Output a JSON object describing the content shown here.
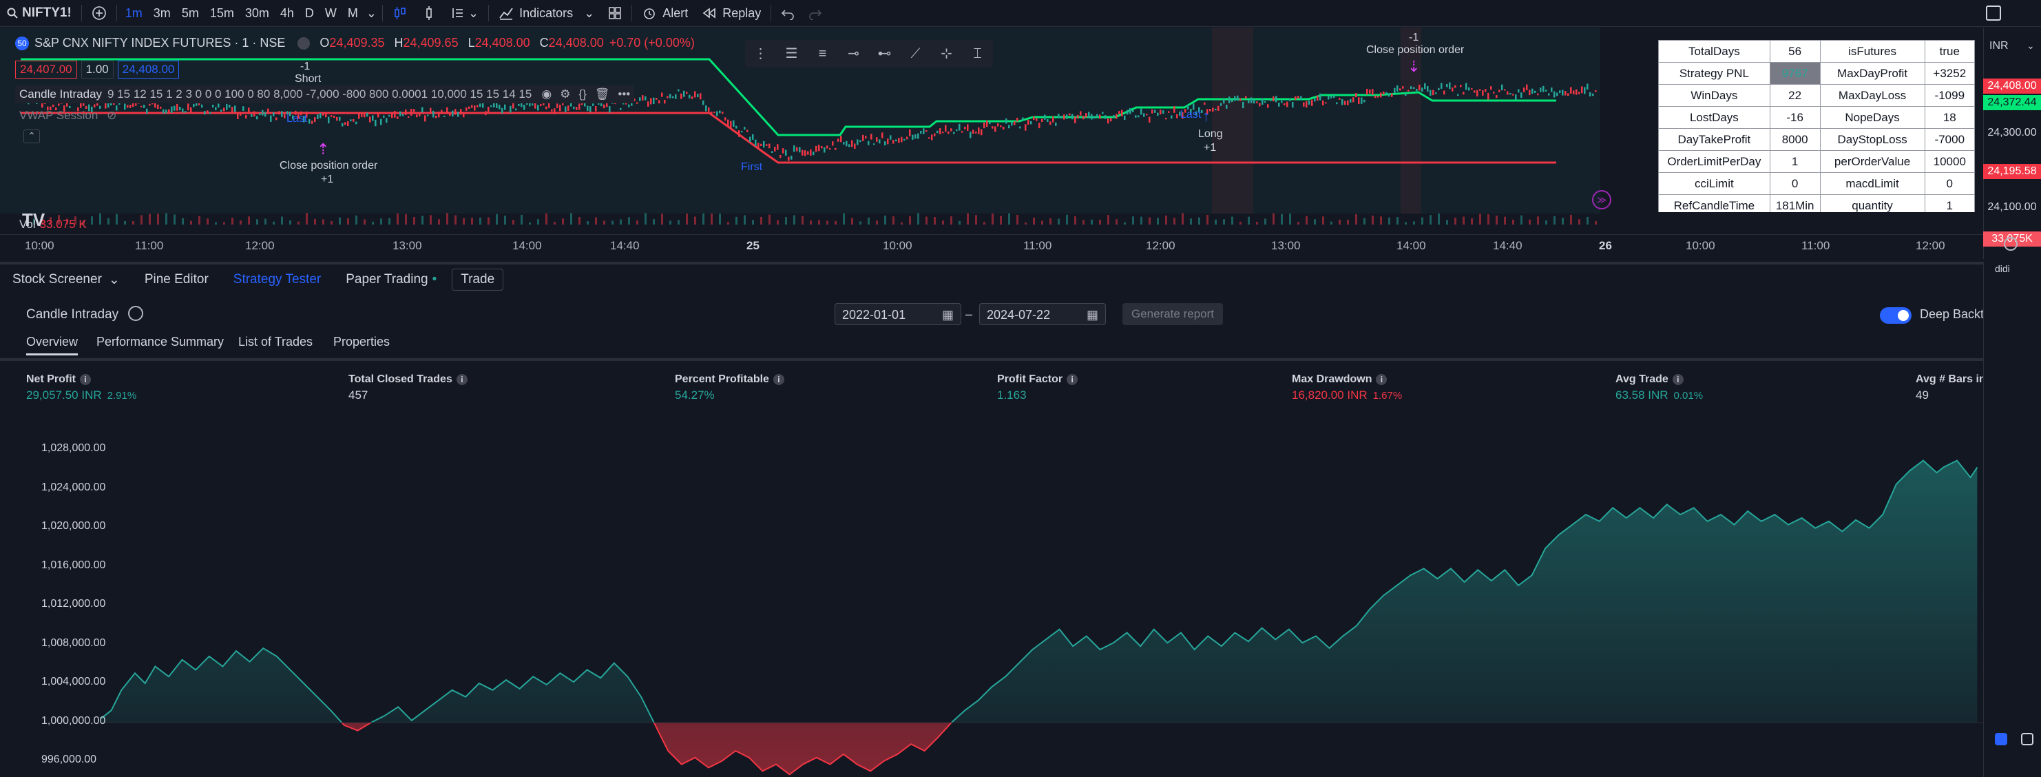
{
  "toolbar": {
    "symbol": "NIFTY1!",
    "intervals": [
      "1m",
      "3m",
      "5m",
      "15m",
      "30m",
      "4h",
      "D",
      "W",
      "M"
    ],
    "active_interval": "1m",
    "indicators_label": "Indicators",
    "alert_label": "Alert",
    "replay_label": "Replay"
  },
  "chart": {
    "exchange_badge": "50",
    "title": "S&P CNX NIFTY INDEX FUTURES · 1 · NSE",
    "ohlc": {
      "o_label": "O",
      "o": "24,409.35",
      "h_label": "H",
      "h": "24,409.65",
      "l_label": "L",
      "l": "24,408.00",
      "c_label": "C",
      "c": "24,408.00",
      "change": "+0.70 (+0.00%)"
    },
    "bid": "24,407.00",
    "spread": "1.00",
    "ask": "24,408.00",
    "indicator_name": "Candle Intraday",
    "indicator_params": "9 15 12 15 1 2 3 0 0 0 100 0 80 8,000 -7,000 -800 800 0.0001 10,000 15 15 14 15",
    "vwap_label": "VWAP Session",
    "annotations": {
      "short_top": "-1",
      "short": "Short",
      "last1": "Last",
      "close1": "Close position order",
      "close1_qty": "+1",
      "first": "First",
      "last2": "Last",
      "long": "Long",
      "long_qty": "+1",
      "close2_qty": "-1",
      "close2": "Close position order"
    },
    "volume_label": "Vol",
    "volume_value": "33.075 K",
    "time_labels": [
      "10:00",
      "11:00",
      "12:00",
      "13:00",
      "14:00",
      "14:40",
      "25",
      "10:00",
      "11:00",
      "12:00",
      "13:00",
      "14:00",
      "14:40",
      "26",
      "10:00",
      "11:00",
      "12:00"
    ]
  },
  "price_scale": {
    "currency": "INR",
    "labels": [
      {
        "text": "24,408.00",
        "style": "red"
      },
      {
        "text": "24,372.44",
        "style": "green"
      },
      {
        "text": "24,300.00",
        "style": "grey"
      },
      {
        "text": "24,195.58",
        "style": "red"
      },
      {
        "text": "24,100.00",
        "style": "grey"
      },
      {
        "text": "33.075K",
        "style": "pink"
      }
    ]
  },
  "stats_table": [
    [
      "TotalDays",
      "56",
      "isFutures",
      "true"
    ],
    [
      "Strategy PNL",
      "9767",
      "MaxDayProfit",
      "+3252"
    ],
    [
      "WinDays",
      "22",
      "MaxDayLoss",
      "-1099"
    ],
    [
      "LostDays",
      "-16",
      "NopeDays",
      "18"
    ],
    [
      "DayTakeProfit",
      "8000",
      "DayStopLoss",
      "-7000"
    ],
    [
      "OrderLimitPerDay",
      "1",
      "perOrderValue",
      "10000"
    ],
    [
      "cciLimit",
      "0",
      "macdLimit",
      "0"
    ],
    [
      "RefCandleTime",
      "181Min",
      "quantity",
      "1"
    ]
  ],
  "panel": {
    "tabs": [
      "Stock Screener",
      "Pine Editor",
      "Strategy Tester",
      "Paper Trading",
      "Trade"
    ],
    "active_tab": "Strategy Tester",
    "strategy_name": "Candle Intraday",
    "date_from": "2022-01-01",
    "date_sep": "–",
    "date_to": "2024-07-22",
    "generate_label": "Generate report",
    "deep_label": "Deep Backtesting",
    "subtabs": [
      "Overview",
      "Performance Summary",
      "List of Trades",
      "Properties"
    ],
    "metrics": [
      {
        "label": "Net Profit",
        "value": "29,057.50 INR",
        "pct": "2.91%",
        "color": "green"
      },
      {
        "label": "Total Closed Trades",
        "value": "457",
        "pct": "",
        "color": "white"
      },
      {
        "label": "Percent Profitable",
        "value": "54.27%",
        "pct": "",
        "color": "green"
      },
      {
        "label": "Profit Factor",
        "value": "1.163",
        "pct": "",
        "color": "green"
      },
      {
        "label": "Max Drawdown",
        "value": "16,820.00 INR",
        "pct": "1.67%",
        "color": "red"
      },
      {
        "label": "Avg Trade",
        "value": "63.58 INR",
        "pct": "0.01%",
        "color": "green"
      },
      {
        "label": "Avg # Bars in Trades",
        "value": "49",
        "pct": "",
        "color": "white"
      }
    ],
    "y_labels": [
      "1,028,000.00",
      "1,024,000.00",
      "1,020,000.00",
      "1,016,000.00",
      "1,012,000.00",
      "1,008,000.00",
      "1,004,000.00",
      "1,000,000.00",
      "996,000.00"
    ]
  },
  "colors": {
    "accent": "#2962ff",
    "up": "#26a69a",
    "down": "#f23645",
    "bg": "#131722"
  }
}
